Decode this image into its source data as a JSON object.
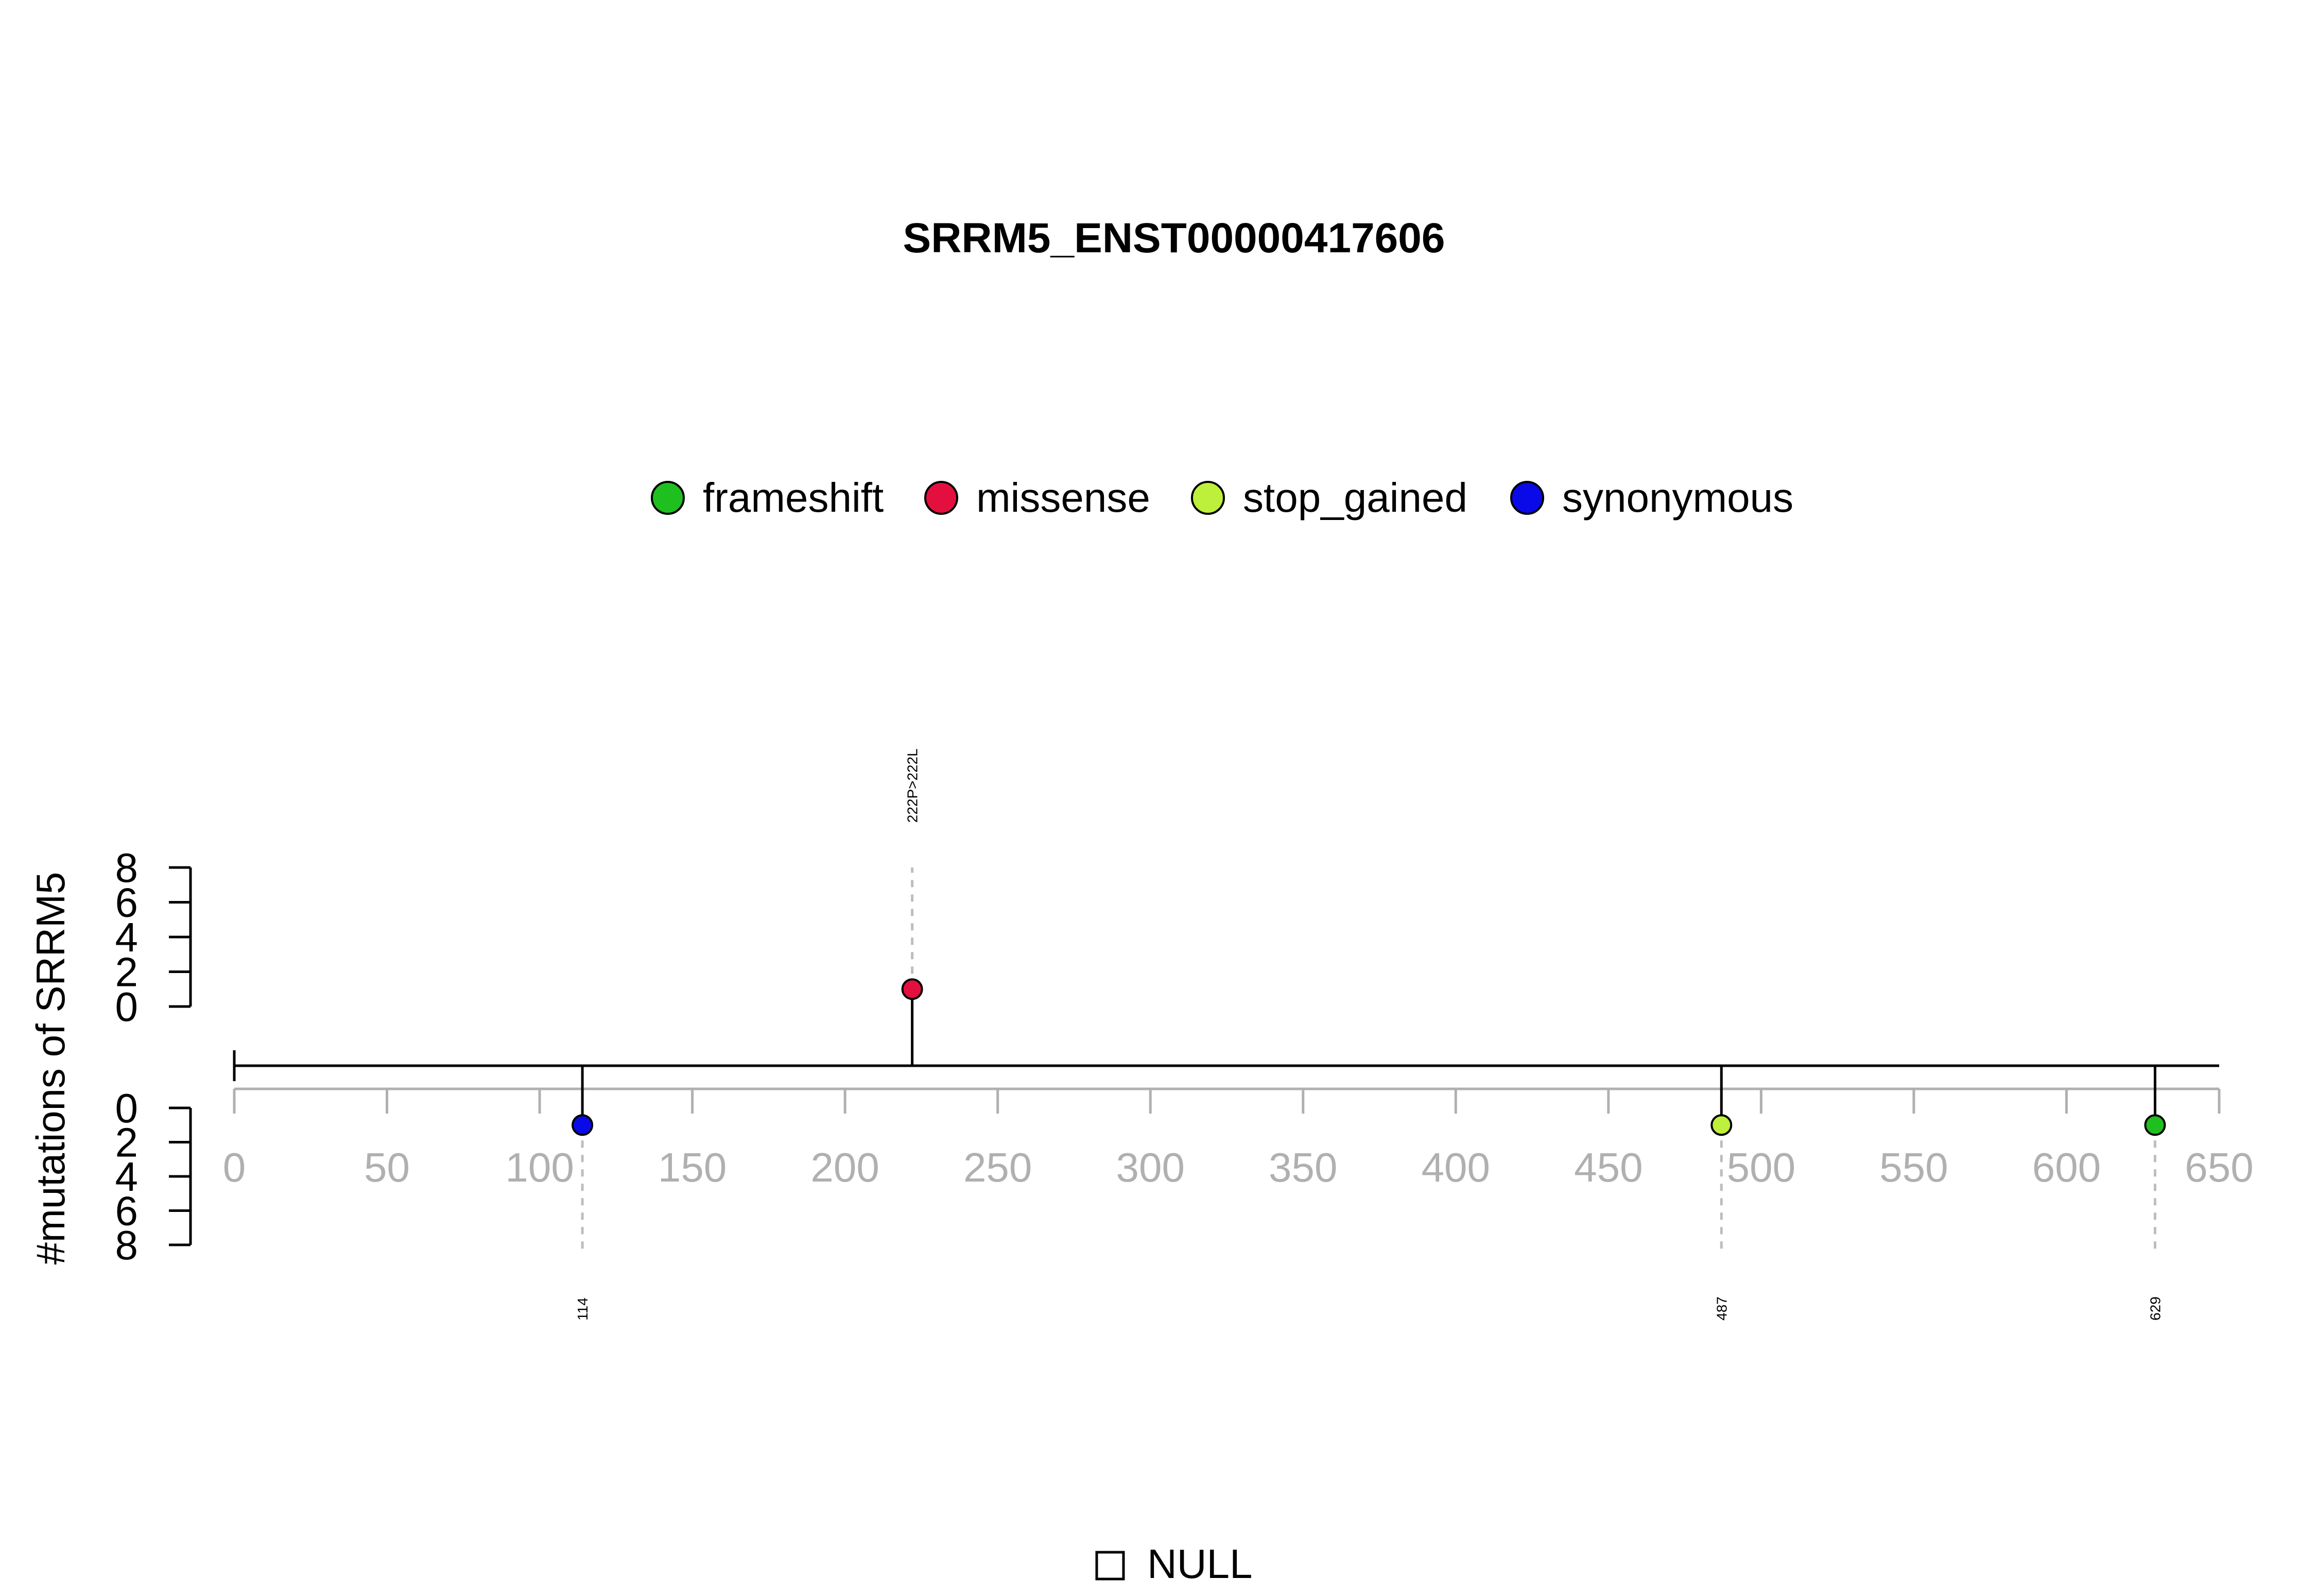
{
  "chart_data": {
    "type": "lollipop",
    "title": "SRRM5_ENST00000417606",
    "ylabel": "#mutations of SRRM5",
    "x_ticks": [
      0,
      50,
      100,
      150,
      200,
      250,
      300,
      350,
      400,
      450,
      500,
      550,
      600,
      650
    ],
    "xlim": [
      0,
      650
    ],
    "y_ticks_upper": [
      0,
      2,
      4,
      6,
      8
    ],
    "y_ticks_lower": [
      0,
      2,
      4,
      6,
      8
    ],
    "ylim": [
      0,
      8
    ],
    "legend": {
      "placement": "top-center",
      "items": [
        {
          "label": "frameshift",
          "color": "#1fbf1f"
        },
        {
          "label": "missense",
          "color": "#e3103f"
        },
        {
          "label": "stop_gained",
          "color": "#bdf03a"
        },
        {
          "label": "synonymous",
          "color": "#0a0ae8"
        }
      ]
    },
    "mutations": [
      {
        "position": 114,
        "count": 1,
        "type": "synonymous",
        "side": "lower",
        "label": "114",
        "color": "#0a0ae8"
      },
      {
        "position": 222,
        "count": 1,
        "type": "missense",
        "side": "upper",
        "label": "222P>222L",
        "color": "#e3103f"
      },
      {
        "position": 487,
        "count": 1,
        "type": "stop_gained",
        "side": "lower",
        "label": "487",
        "color": "#bdf03a"
      },
      {
        "position": 629,
        "count": 1,
        "type": "frameshift",
        "side": "lower",
        "label": "629",
        "color": "#1fbf1f"
      }
    ],
    "domain_legend": {
      "label": "NULL"
    }
  }
}
